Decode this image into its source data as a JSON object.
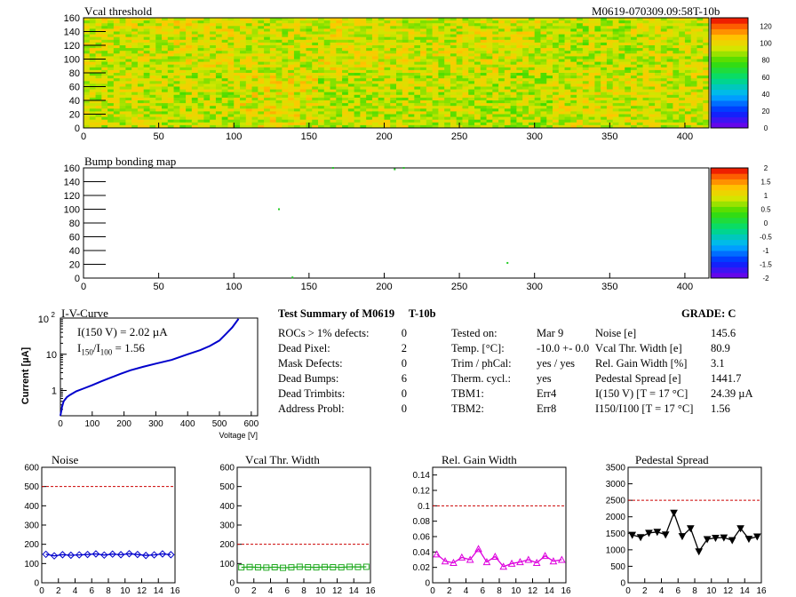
{
  "header": {
    "vcal_title": "Vcal threshold",
    "module_id": "M0619-070309.09:58T-10b",
    "bump_title": "Bump bonding map"
  },
  "colors": {
    "frame": "#000000",
    "noise_series": "#0000cc",
    "vcal_series": "#22aa22",
    "gain_series": "#dd00dd",
    "ped_series": "#000000",
    "limit_line": "#cc0000",
    "iv_curve": "#0000cc",
    "bump_hit": "#22cc22"
  },
  "chart_data": [
    {
      "id": "vcal_map",
      "type": "heatmap",
      "title": "Vcal threshold",
      "xlim": [
        0,
        416
      ],
      "ylim": [
        0,
        160
      ],
      "xticks": [
        0,
        50,
        100,
        150,
        200,
        250,
        300,
        350,
        400
      ],
      "yticks": [
        0,
        20,
        40,
        60,
        80,
        100,
        120,
        140,
        160
      ],
      "zlim": [
        0,
        130
      ],
      "zticks": [
        0,
        20,
        40,
        60,
        80,
        100,
        120
      ],
      "rocs_top": [
        95,
        96,
        94,
        96,
        95,
        95,
        92,
        94
      ],
      "rocs_bottom": [
        94,
        92,
        97,
        92,
        93,
        91,
        95,
        94
      ],
      "palette": "rainbow"
    },
    {
      "id": "bump_map",
      "type": "heatmap",
      "title": "Bump bonding map",
      "xlim": [
        0,
        416
      ],
      "ylim": [
        0,
        160
      ],
      "xticks": [
        0,
        50,
        100,
        150,
        200,
        250,
        300,
        350,
        400
      ],
      "yticks": [
        0,
        20,
        40,
        60,
        80,
        100,
        120,
        140,
        160
      ],
      "zlim": [
        -2,
        2
      ],
      "zticks": [
        -2,
        -1.5,
        -1,
        -0.5,
        0,
        0.5,
        1,
        1.5,
        2
      ],
      "hits": [
        [
          130,
          100
        ],
        [
          139,
          1
        ],
        [
          166,
          160
        ],
        [
          207,
          158
        ],
        [
          282,
          22
        ],
        [
          213,
          160
        ]
      ]
    },
    {
      "id": "iv_curve",
      "type": "line",
      "title": "I-V-Curve",
      "xlabel": "Voltage [V]",
      "ylabel": "Current [µA]",
      "log_y": true,
      "xlim": [
        0,
        620
      ],
      "ylim": [
        0.2,
        100
      ],
      "xticks": [
        0,
        100,
        200,
        300,
        400,
        500,
        600
      ],
      "yticks": [
        {
          "value": 1,
          "label": "1"
        },
        {
          "value": 10,
          "label": "10"
        }
      ],
      "ymax_label": "10",
      "ymax_label_exp": "2",
      "annotations": {
        "i150_label": "I(150 V) = 2.02 µA",
        "ratio_label_prefix": "I",
        "ratio_sub_num": "150",
        "ratio_sep": "/I",
        "ratio_sub_den": "100",
        "ratio_value": " =  1.56"
      },
      "x": [
        0,
        5,
        10,
        20,
        30,
        50,
        75,
        100,
        130,
        160,
        190,
        220,
        260,
        300,
        350,
        400,
        440,
        470,
        500,
        520,
        540,
        560
      ],
      "y": [
        0.2,
        0.35,
        0.5,
        0.65,
        0.75,
        0.95,
        1.15,
        1.4,
        1.8,
        2.3,
        2.9,
        3.6,
        4.5,
        5.5,
        7.0,
        10.0,
        13.0,
        17.0,
        24.0,
        36.0,
        55.0,
        95.0
      ]
    },
    {
      "id": "noise",
      "type": "line",
      "title": "Noise",
      "xlim": [
        0,
        16
      ],
      "ylim": [
        0,
        600
      ],
      "xticks": [
        0,
        2,
        4,
        6,
        8,
        10,
        12,
        14,
        16
      ],
      "yticks": [
        0,
        100,
        200,
        300,
        400,
        500,
        600
      ],
      "limit": 500,
      "x": [
        0.5,
        1.5,
        2.5,
        3.5,
        4.5,
        5.5,
        6.5,
        7.5,
        8.5,
        9.5,
        10.5,
        11.5,
        12.5,
        13.5,
        14.5,
        15.5
      ],
      "y": [
        148,
        140,
        146,
        143,
        145,
        147,
        150,
        144,
        149,
        146,
        151,
        147,
        142,
        145,
        150,
        146
      ],
      "marker": "diamond"
    },
    {
      "id": "vcal_width",
      "type": "line",
      "title": "Vcal Thr. Width",
      "xlim": [
        0,
        16
      ],
      "ylim": [
        0,
        600
      ],
      "xticks": [
        0,
        2,
        4,
        6,
        8,
        10,
        12,
        14,
        16
      ],
      "yticks": [
        0,
        100,
        200,
        300,
        400,
        500,
        600
      ],
      "limit": 200,
      "x": [
        0.5,
        1.5,
        2.5,
        3.5,
        4.5,
        5.5,
        6.5,
        7.5,
        8.5,
        9.5,
        10.5,
        11.5,
        12.5,
        13.5,
        14.5,
        15.5
      ],
      "y": [
        80,
        82,
        80,
        79,
        81,
        78,
        80,
        83,
        81,
        80,
        82,
        81,
        80,
        83,
        82,
        83
      ],
      "marker": "square"
    },
    {
      "id": "gain_width",
      "type": "line",
      "title": "Rel. Gain Width",
      "xlim": [
        0,
        16
      ],
      "ylim": [
        0,
        0.15
      ],
      "xticks": [
        0,
        2,
        4,
        6,
        8,
        10,
        12,
        14,
        16
      ],
      "yticks": [
        0,
        0.02,
        0.04,
        0.06,
        0.08,
        0.1,
        0.12,
        0.14
      ],
      "limit": 0.1,
      "x": [
        0.5,
        1.5,
        2.5,
        3.5,
        4.5,
        5.5,
        6.5,
        7.5,
        8.5,
        9.5,
        10.5,
        11.5,
        12.5,
        13.5,
        14.5,
        15.5
      ],
      "y": [
        0.037,
        0.028,
        0.026,
        0.033,
        0.03,
        0.044,
        0.027,
        0.034,
        0.021,
        0.025,
        0.027,
        0.03,
        0.026,
        0.035,
        0.028,
        0.03
      ],
      "marker": "triangle"
    },
    {
      "id": "pedestal",
      "type": "line",
      "title": "Pedestal Spread",
      "xlim": [
        0,
        16
      ],
      "ylim": [
        0,
        3500
      ],
      "xticks": [
        0,
        2,
        4,
        6,
        8,
        10,
        12,
        14,
        16
      ],
      "yticks": [
        0,
        500,
        1000,
        1500,
        2000,
        2500,
        3000,
        3500
      ],
      "limit": 2500,
      "x": [
        0.5,
        1.5,
        2.5,
        3.5,
        4.5,
        5.5,
        6.5,
        7.5,
        8.5,
        9.5,
        10.5,
        11.5,
        12.5,
        13.5,
        14.5,
        15.5
      ],
      "y": [
        1450,
        1380,
        1510,
        1540,
        1460,
        2120,
        1410,
        1650,
        950,
        1320,
        1360,
        1370,
        1290,
        1650,
        1330,
        1400
      ],
      "marker": "triangle-down"
    }
  ],
  "summary": {
    "title": "Test Summary of M0619",
    "module_tag": "T-10b",
    "grade_label": "GRADE:  C",
    "left_rows": [
      {
        "label": "ROCs > 1% defects:",
        "value": "0"
      },
      {
        "label": "Dead Pixel:",
        "value": "2"
      },
      {
        "label": "Mask Defects:",
        "value": "0"
      },
      {
        "label": "Dead Bumps:",
        "value": "6"
      },
      {
        "label": "Dead Trimbits:",
        "value": "0"
      },
      {
        "label": "Address Probl:",
        "value": "0"
      }
    ],
    "mid_rows": [
      {
        "label": "Tested on:",
        "value": "Mar 9"
      },
      {
        "label": "Temp. [°C]:",
        "value": "-10.0 +- 0.0"
      },
      {
        "label": "Trim / phCal:",
        "value": "yes / yes"
      },
      {
        "label": "Therm. cycl.:",
        "value": "yes"
      },
      {
        "label": "TBM1:",
        "value": "Err4"
      },
      {
        "label": "TBM2:",
        "value": "Err8"
      }
    ],
    "right_rows": [
      {
        "label": "Noise [e]",
        "value": "145.6"
      },
      {
        "label": "Vcal Thr. Width [e]",
        "value": "80.9"
      },
      {
        "label": "Rel. Gain Width [%]",
        "value": "3.1"
      },
      {
        "label": "Pedestal Spread [e]",
        "value": "1441.7"
      },
      {
        "label": "I(150 V) [T = 17 °C]",
        "value": "24.39 µA"
      },
      {
        "label": "I150/I100  [T = 17 °C]",
        "value": "1.56"
      }
    ]
  }
}
